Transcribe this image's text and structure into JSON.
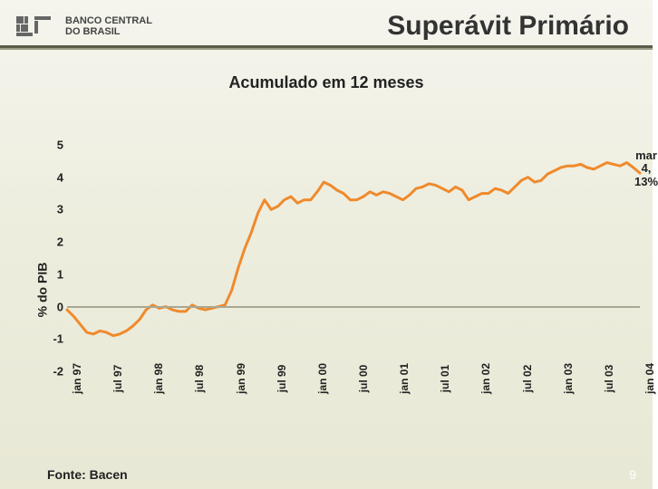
{
  "header": {
    "org_line1": "BANCO CENTRAL",
    "org_line2": "DO BRASIL",
    "title": "Superávit Primário"
  },
  "subtitle": "Acumulado em 12 meses",
  "chart": {
    "type": "line",
    "ylabel": "% do PIB",
    "ylim": [
      -2,
      5
    ],
    "ytick_step": 1,
    "yticks": [
      -2,
      -1,
      0,
      1,
      2,
      3,
      4,
      5
    ],
    "major_gridlines_at": [
      0
    ],
    "xlabels": [
      "jan 97",
      "jul 97",
      "jan 98",
      "jul 98",
      "jan 99",
      "jul 99",
      "jan 00",
      "jul 00",
      "jan 01",
      "jul 01",
      "jan 02",
      "jul 02",
      "jan 03",
      "jul 03",
      "jan 04"
    ],
    "x_domain_months": 87,
    "series": {
      "color": "#ef8a2c",
      "line_width": 3,
      "values": [
        -0.1,
        -0.3,
        -0.55,
        -0.8,
        -0.85,
        -0.75,
        -0.8,
        -0.9,
        -0.85,
        -0.75,
        -0.6,
        -0.4,
        -0.1,
        0.05,
        -0.05,
        0.0,
        -0.1,
        -0.15,
        -0.15,
        0.05,
        -0.05,
        -0.1,
        -0.05,
        0.0,
        0.05,
        0.5,
        1.2,
        1.8,
        2.3,
        2.9,
        3.3,
        3.0,
        3.1,
        3.3,
        3.4,
        3.2,
        3.3,
        3.3,
        3.55,
        3.85,
        3.75,
        3.6,
        3.5,
        3.3,
        3.3,
        3.4,
        3.55,
        3.45,
        3.55,
        3.5,
        3.4,
        3.3,
        3.45,
        3.65,
        3.7,
        3.8,
        3.75,
        3.65,
        3.55,
        3.7,
        3.6,
        3.3,
        3.4,
        3.5,
        3.5,
        3.65,
        3.6,
        3.5,
        3.7,
        3.9,
        4.0,
        3.85,
        3.9,
        4.1,
        4.2,
        4.3,
        4.35,
        4.35,
        4.4,
        4.3,
        4.25,
        4.35,
        4.45,
        4.4,
        4.35,
        4.45,
        4.3,
        4.13
      ]
    },
    "annotation": {
      "text_line1": "mar",
      "text_line2": "4, 13%"
    },
    "tick_font_size": 13,
    "axis_label_font_size": 14,
    "background": "transparent",
    "grid_major_color": "#a8a892"
  },
  "footer": {
    "source": "Fonte: Bacen",
    "page": "9"
  },
  "colors": {
    "slide_bg_top": "#f5f5ee",
    "slide_bg_bottom": "#e8e8d5",
    "rule_dark": "#5b5b48",
    "rule_light": "#9c9c84",
    "text": "#222222"
  }
}
